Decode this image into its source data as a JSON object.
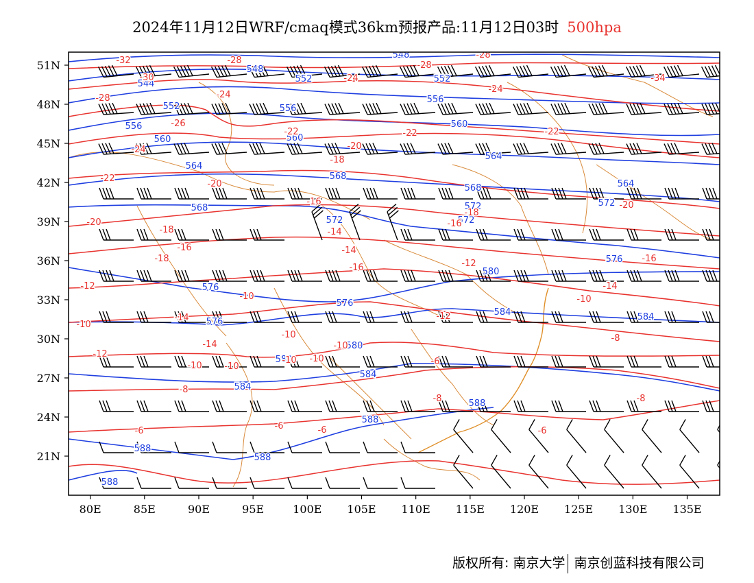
{
  "title": {
    "text": "2024年11月12日WRF/cmaq模式36km预报产品:11月12日03时",
    "level": "500hpa"
  },
  "axes": {
    "lat_labels": [
      "51N",
      "48N",
      "45N",
      "42N",
      "39N",
      "36N",
      "33N",
      "30N",
      "27N",
      "24N",
      "21N"
    ],
    "lon_labels": [
      "80E",
      "85E",
      "90E",
      "95E",
      "100E",
      "105E",
      "110E",
      "115E",
      "120E",
      "125E",
      "130E",
      "135E"
    ],
    "lon_range": [
      78,
      138
    ],
    "lat_range": [
      18,
      52
    ]
  },
  "colors": {
    "geopotential": "#1f3fe0",
    "temperature": "#e8332f",
    "borders": "#d98a3a",
    "wind": "#000000"
  },
  "geopotential_labels": [
    {
      "text": "548"
    },
    {
      "text": "548"
    },
    {
      "text": "544"
    },
    {
      "text": "552"
    },
    {
      "text": "552"
    },
    {
      "text": "552"
    },
    {
      "text": "556"
    },
    {
      "text": "556"
    },
    {
      "text": "556"
    },
    {
      "text": "560"
    },
    {
      "text": "560"
    },
    {
      "text": "560"
    },
    {
      "text": "564"
    },
    {
      "text": "564"
    },
    {
      "text": "564"
    },
    {
      "text": "568"
    },
    {
      "text": "568"
    },
    {
      "text": "568"
    },
    {
      "text": "572"
    },
    {
      "text": "572"
    },
    {
      "text": "576"
    },
    {
      "text": "576"
    },
    {
      "text": "576"
    },
    {
      "text": "576"
    },
    {
      "text": "580"
    },
    {
      "text": "580"
    },
    {
      "text": "580"
    },
    {
      "text": "584"
    },
    {
      "text": "584"
    },
    {
      "text": "584"
    },
    {
      "text": "584"
    },
    {
      "text": "588"
    },
    {
      "text": "588"
    },
    {
      "text": "588"
    },
    {
      "text": "588"
    },
    {
      "text": "588"
    },
    {
      "text": "572"
    },
    {
      "text": "572"
    }
  ],
  "temperature_labels": [
    {
      "text": "-32"
    },
    {
      "text": "-28"
    },
    {
      "text": "-28"
    },
    {
      "text": "-28"
    },
    {
      "text": "-30"
    },
    {
      "text": "-28"
    },
    {
      "text": "-24"
    },
    {
      "text": "-24"
    },
    {
      "text": "-24"
    },
    {
      "text": "-34"
    },
    {
      "text": "-26"
    },
    {
      "text": "-22"
    },
    {
      "text": "-22"
    },
    {
      "text": "-22"
    },
    {
      "text": "-24"
    },
    {
      "text": "-20"
    },
    {
      "text": "-18"
    },
    {
      "text": "-22"
    },
    {
      "text": "-20"
    },
    {
      "text": "-16"
    },
    {
      "text": "-18"
    },
    {
      "text": "-20"
    },
    {
      "text": "-20"
    },
    {
      "text": "-18"
    },
    {
      "text": "-14"
    },
    {
      "text": "-16"
    },
    {
      "text": "-16"
    },
    {
      "text": "-14"
    },
    {
      "text": "-12"
    },
    {
      "text": "-14"
    },
    {
      "text": "-18"
    },
    {
      "text": "-16"
    },
    {
      "text": "-10"
    },
    {
      "text": "-12"
    },
    {
      "text": "-14"
    },
    {
      "text": "-16"
    },
    {
      "text": "-10"
    },
    {
      "text": "-12"
    },
    {
      "text": "-10"
    },
    {
      "text": "-14"
    },
    {
      "text": "-12"
    },
    {
      "text": "-10"
    },
    {
      "text": "-10"
    },
    {
      "text": "-10"
    },
    {
      "text": "-8"
    },
    {
      "text": "-10"
    },
    {
      "text": "-10"
    },
    {
      "text": "-10"
    },
    {
      "text": "-6"
    },
    {
      "text": "-8"
    },
    {
      "text": "-8"
    },
    {
      "text": "-8"
    },
    {
      "text": "-6"
    },
    {
      "text": "-6"
    },
    {
      "text": "-6"
    },
    {
      "text": "-6"
    },
    {
      "text": "-6"
    },
    {
      "text": "-6"
    }
  ],
  "footer": {
    "copyright": "版权所有: 南京大学",
    "company": "南京创蓝科技有限公司"
  }
}
